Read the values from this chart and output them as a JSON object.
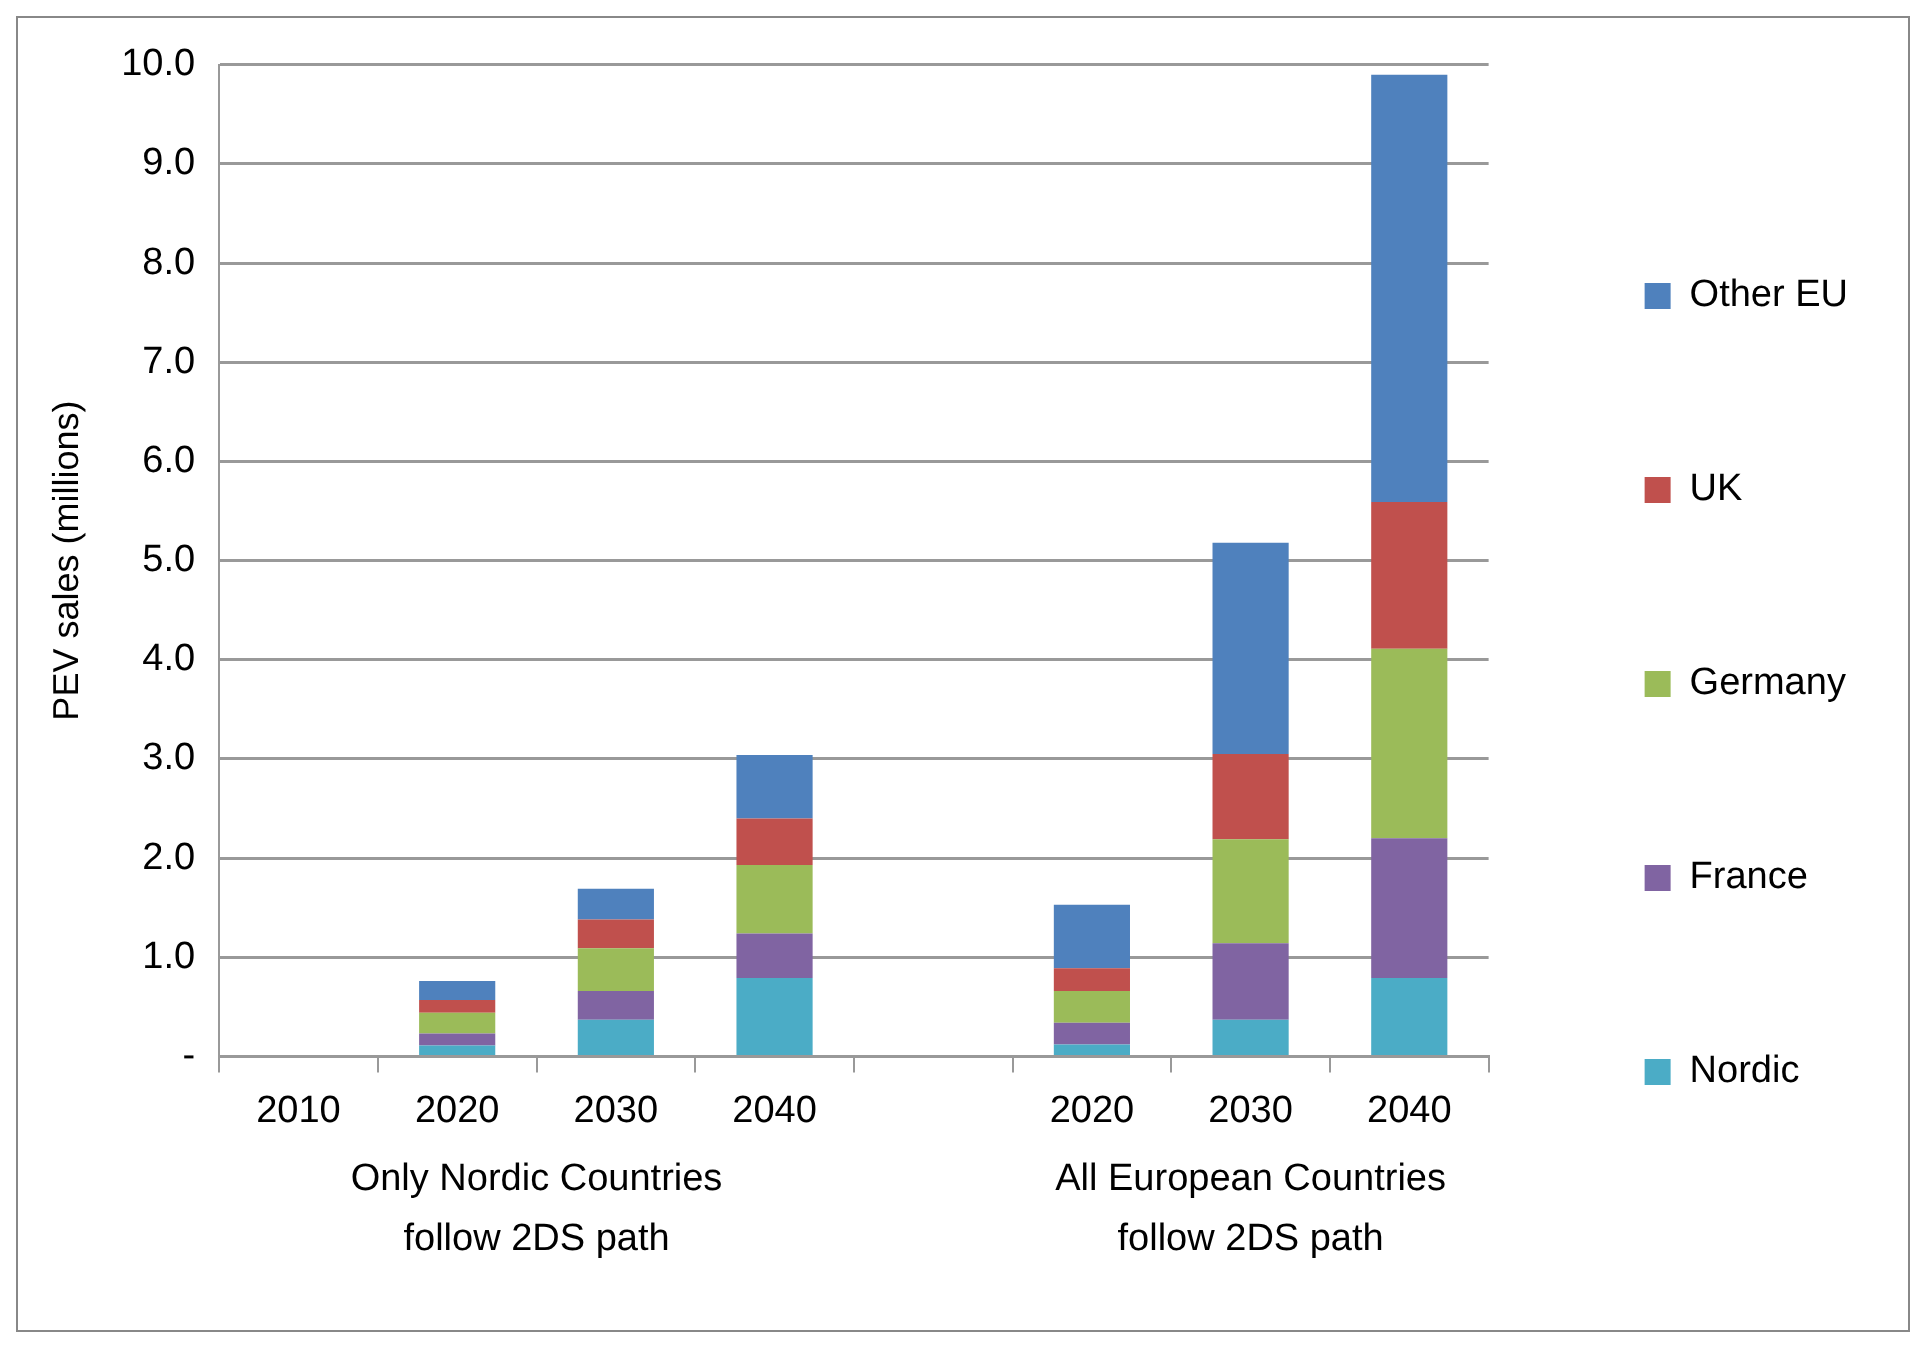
{
  "chart_data": {
    "type": "bar",
    "stacked": true,
    "ylabel": "PEV sales (millions)",
    "categories": [
      "2010",
      "2020",
      "2030",
      "2040",
      null,
      "2020",
      "2030",
      "2040"
    ],
    "series": [
      {
        "name": "Nordic",
        "color": "#4bacc6",
        "values": [
          0,
          0.11,
          0.37,
          0.79,
          null,
          0.12,
          0.37,
          0.79
        ]
      },
      {
        "name": "France",
        "color": "#8064a2",
        "values": [
          0,
          0.12,
          0.29,
          0.45,
          null,
          0.22,
          0.77,
          1.41
        ]
      },
      {
        "name": "Germany",
        "color": "#9bbb59",
        "values": [
          0,
          0.21,
          0.43,
          0.69,
          null,
          0.32,
          1.05,
          1.91
        ]
      },
      {
        "name": "UK",
        "color": "#c0504d",
        "values": [
          0,
          0.13,
          0.29,
          0.47,
          null,
          0.23,
          0.86,
          1.48
        ]
      },
      {
        "name": "Other EU",
        "color": "#4f81bd",
        "values": [
          0,
          0.19,
          0.31,
          0.64,
          null,
          0.64,
          2.13,
          4.31
        ]
      }
    ],
    "ylim": [
      0,
      10
    ],
    "yticks": [
      {
        "value": 0,
        "label": "-"
      },
      {
        "value": 1,
        "label": "1.0"
      },
      {
        "value": 2,
        "label": "2.0"
      },
      {
        "value": 3,
        "label": "3.0"
      },
      {
        "value": 4,
        "label": "4.0"
      },
      {
        "value": 5,
        "label": "5.0"
      },
      {
        "value": 6,
        "label": "6.0"
      },
      {
        "value": 7,
        "label": "7.0"
      },
      {
        "value": 8,
        "label": "8.0"
      },
      {
        "value": 9,
        "label": "9.0"
      },
      {
        "value": 10,
        "label": "10.0"
      }
    ],
    "grid": "y",
    "legend": "right",
    "annotations": [
      "Only Nordic Countries\nfollow 2DS path",
      "All European Countries\nfollow 2DS path"
    ]
  }
}
